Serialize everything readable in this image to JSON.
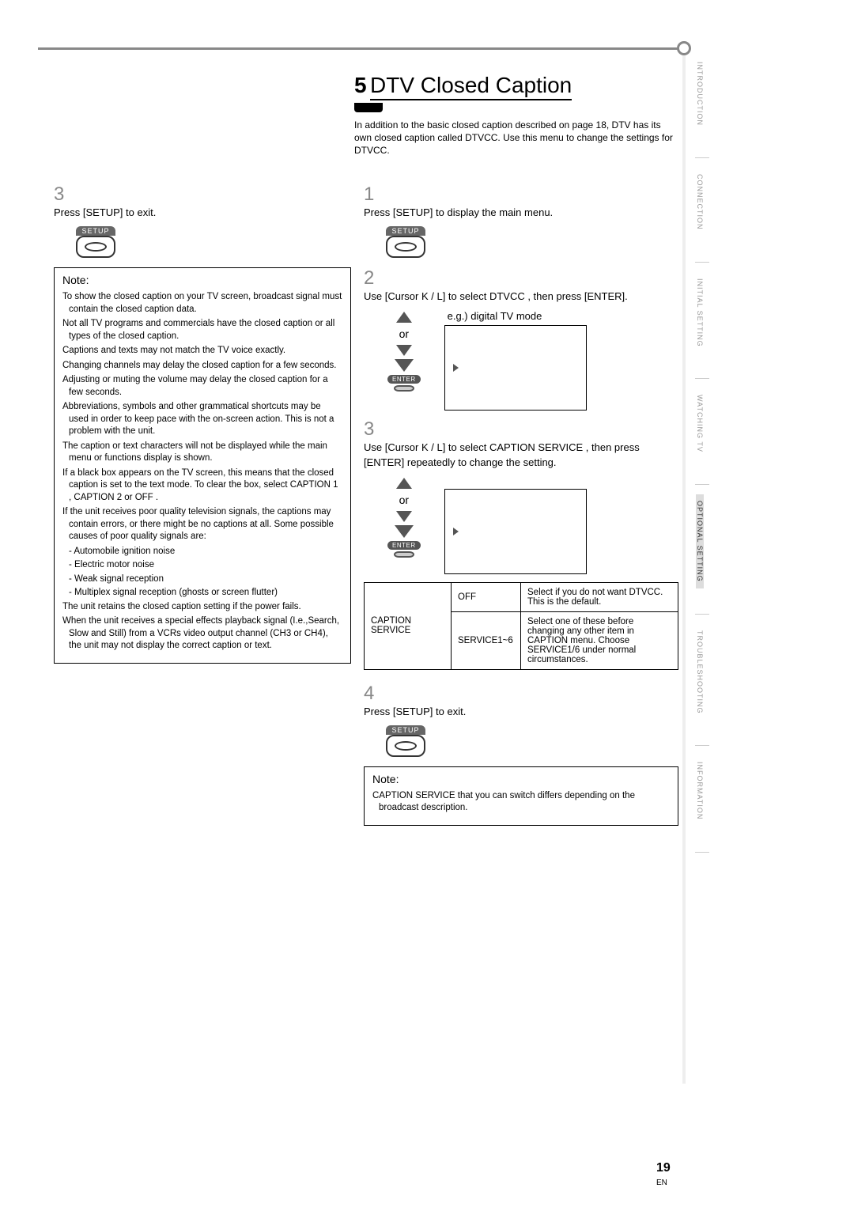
{
  "title_num": "5",
  "title_text": "DTV Closed Caption",
  "intro": "In addition to the basic closed caption described on page 18, DTV has its own closed caption called DTVCC. Use this menu to change the settings for DTVCC.",
  "left": {
    "step3_num": "3",
    "step3_text": "Press [SETUP] to exit.",
    "setup_label": "SETUP",
    "note_title": "Note:",
    "note_lines": [
      "To show the closed caption on your TV screen, broadcast signal must contain the closed caption data.",
      "Not all TV programs and commercials have the closed caption or all types of the closed caption.",
      "Captions and texts may not match the TV voice exactly.",
      "Changing channels may delay the closed caption for a few seconds.",
      "Adjusting or muting the volume may delay the closed caption for a few seconds.",
      "Abbreviations, symbols and other grammatical shortcuts may be used in order to keep pace with the on-screen action. This is not a problem with the unit.",
      "The caption or text characters will not be displayed while the main menu or functions display is shown.",
      "If a black box appears on the TV screen, this means that the closed caption is set to the text mode. To clear the box, select CAPTION 1 , CAPTION 2 or OFF .",
      "If the unit receives poor quality television signals, the captions may contain errors, or there might be no captions at all. Some possible causes of poor quality signals are:"
    ],
    "note_subs": [
      "- Automobile ignition noise",
      "- Electric motor noise",
      "- Weak signal reception",
      "- Multiplex signal reception (ghosts or screen flutter)"
    ],
    "note_lines2": [
      "The unit retains the closed caption setting if the power fails.",
      "When the unit receives a special effects playback signal (I.e.,Search, Slow and Still) from a VCRs video output channel (CH3 or CH4), the unit may not display the correct caption or text."
    ]
  },
  "right": {
    "step1_num": "1",
    "step1_text": "Press [SETUP] to display the main menu.",
    "step2_num": "2",
    "step2_text": "Use [Cursor K / L] to select DTVCC , then press [ENTER].",
    "eg_label": "e.g.) digital TV mode",
    "or_text": "or",
    "enter_label": "ENTER",
    "step3_num": "3",
    "step3_text": "Use [Cursor K / L] to select CAPTION SERVICE , then press [ENTER] repeatedly to change the setting.",
    "table": {
      "col1": "CAPTION SERVICE",
      "rows": [
        {
          "opt": "OFF",
          "desc": "Select if you do not want DTVCC. This is the default."
        },
        {
          "opt": "SERVICE1~6",
          "desc": "Select one of these before changing any other item in CAPTION menu. Choose SERVICE1/6 under normal circumstances."
        }
      ]
    },
    "step4_num": "4",
    "step4_text": "Press [SETUP] to exit.",
    "note_title": "Note:",
    "note_text": "CAPTION SERVICE that you can switch differs depending on the broadcast description."
  },
  "side_tabs": [
    "INTRODUCTION",
    "CONNECTION",
    "INITIAL SETTING",
    "WATCHING TV",
    "OPTIONAL SETTING",
    "TROUBLESHOOTING",
    "INFORMATION"
  ],
  "active_tab_index": 4,
  "page_num": "19",
  "page_en": "EN"
}
